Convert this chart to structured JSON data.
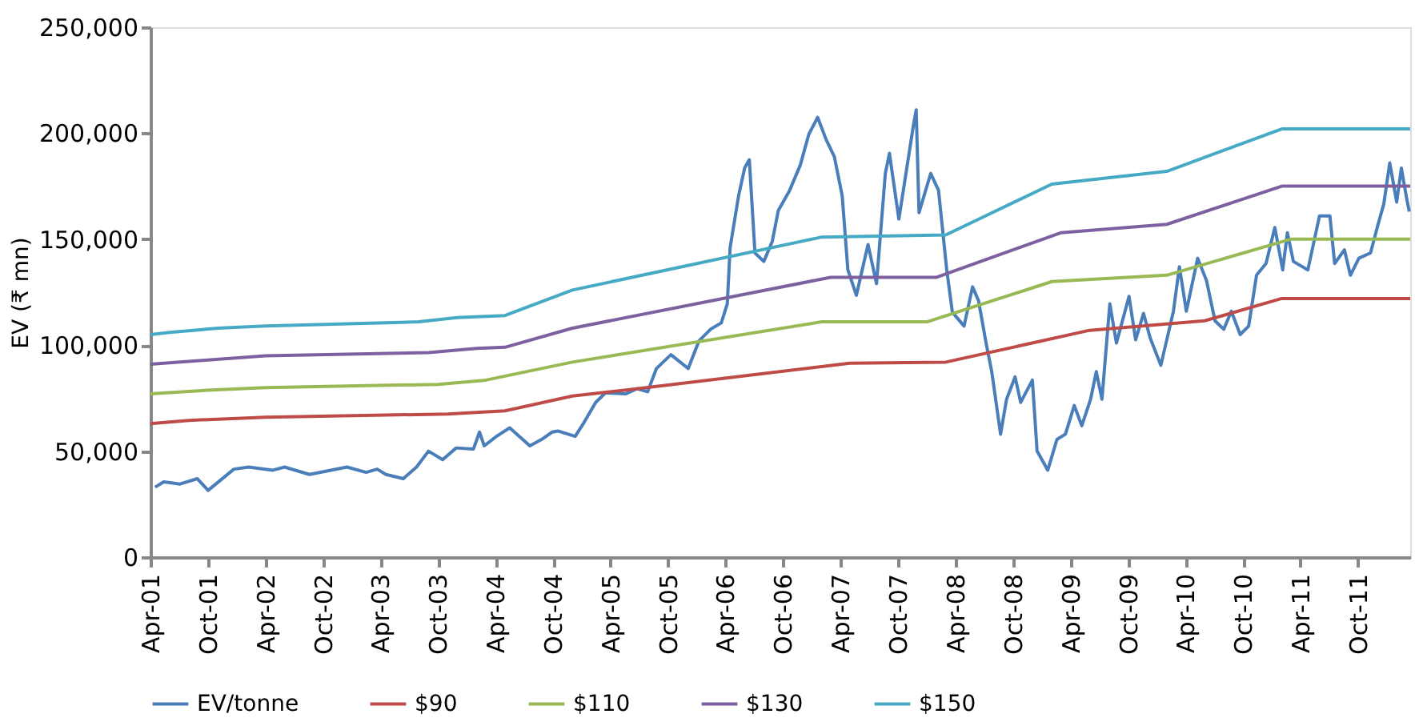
{
  "chart_data": {
    "type": "line",
    "ylabel": "EV (₹ mn)",
    "xlim": [
      "2001-04-01",
      "2012-03-15"
    ],
    "ylim": [
      0,
      250000
    ],
    "yticks": [
      {
        "value": 0,
        "label": "0"
      },
      {
        "value": 50000,
        "label": "50,000"
      },
      {
        "value": 100000,
        "label": "100,000"
      },
      {
        "value": 150000,
        "label": "150,000"
      },
      {
        "value": 200000,
        "label": "200,000"
      },
      {
        "value": 250000,
        "label": "250,000"
      }
    ],
    "xticks": [
      {
        "value": "2001-04-01",
        "label": "Apr-01"
      },
      {
        "value": "2001-10-01",
        "label": "Oct-01"
      },
      {
        "value": "2002-04-01",
        "label": "Apr-02"
      },
      {
        "value": "2002-10-01",
        "label": "Oct-02"
      },
      {
        "value": "2003-04-01",
        "label": "Apr-03"
      },
      {
        "value": "2003-10-01",
        "label": "Oct-03"
      },
      {
        "value": "2004-04-01",
        "label": "Apr-04"
      },
      {
        "value": "2004-10-01",
        "label": "Oct-04"
      },
      {
        "value": "2005-04-01",
        "label": "Apr-05"
      },
      {
        "value": "2005-10-01",
        "label": "Oct-05"
      },
      {
        "value": "2006-04-01",
        "label": "Apr-06"
      },
      {
        "value": "2006-10-01",
        "label": "Oct-06"
      },
      {
        "value": "2007-04-01",
        "label": "Apr-07"
      },
      {
        "value": "2007-10-01",
        "label": "Oct-07"
      },
      {
        "value": "2008-04-01",
        "label": "Apr-08"
      },
      {
        "value": "2008-10-01",
        "label": "Oct-08"
      },
      {
        "value": "2009-04-01",
        "label": "Apr-09"
      },
      {
        "value": "2009-10-01",
        "label": "Oct-09"
      },
      {
        "value": "2010-04-01",
        "label": "Apr-10"
      },
      {
        "value": "2010-10-01",
        "label": "Oct-10"
      },
      {
        "value": "2011-04-01",
        "label": "Apr-11"
      },
      {
        "value": "2011-10-01",
        "label": "Oct-11"
      }
    ],
    "grid": false,
    "legend": "bottom",
    "marker": "none",
    "line_style": "solid",
    "series": [
      {
        "name": "EV/tonne",
        "color": "#4a7ebb",
        "x": [
          "2001-04-16",
          "2001-05-13",
          "2001-07-04",
          "2001-08-28",
          "2001-10-01",
          "2001-12-22",
          "2002-02-07",
          "2002-04-25",
          "2002-06-01",
          "2002-08-19",
          "2002-12-16",
          "2003-02-15",
          "2003-03-22",
          "2003-04-19",
          "2003-06-13",
          "2003-07-25",
          "2003-09-01",
          "2003-10-16",
          "2003-11-28",
          "2004-01-22",
          "2004-02-10",
          "2004-02-25",
          "2004-04-04",
          "2004-05-16",
          "2004-07-19",
          "2004-08-25",
          "2004-09-28",
          "2004-10-16",
          "2004-12-10",
          "2005-01-07",
          "2005-02-13",
          "2005-03-16",
          "2005-05-19",
          "2005-06-25",
          "2005-07-28",
          "2005-08-25",
          "2005-10-10",
          "2005-12-04",
          "2006-01-07",
          "2006-02-13",
          "2006-03-19",
          "2006-04-07",
          "2006-04-16",
          "2006-05-13",
          "2006-06-01",
          "2006-06-16",
          "2006-07-04",
          "2006-08-01",
          "2006-08-28",
          "2006-09-16",
          "2006-10-22",
          "2006-11-25",
          "2006-12-22",
          "2007-01-19",
          "2007-02-15",
          "2007-03-13",
          "2007-04-07",
          "2007-04-25",
          "2007-05-22",
          "2007-06-28",
          "2007-07-25",
          "2007-08-22",
          "2007-09-04",
          "2007-10-04",
          "2007-11-19",
          "2007-11-28",
          "2007-12-07",
          "2008-01-13",
          "2008-02-07",
          "2008-03-04",
          "2008-03-22",
          "2008-04-28",
          "2008-05-25",
          "2008-06-13",
          "2008-07-07",
          "2008-07-25",
          "2008-08-22",
          "2008-09-10",
          "2008-10-07",
          "2008-10-25",
          "2008-12-01",
          "2008-12-16",
          "2009-01-19",
          "2009-02-17",
          "2009-03-16",
          "2009-04-13",
          "2009-05-07",
          "2009-06-04",
          "2009-06-22",
          "2009-07-10",
          "2009-08-04",
          "2009-08-25",
          "2009-10-04",
          "2009-10-25",
          "2009-11-19",
          "2009-12-10",
          "2010-01-13",
          "2010-02-22",
          "2010-03-13",
          "2010-04-04",
          "2010-05-10",
          "2010-06-07",
          "2010-07-04",
          "2010-08-01",
          "2010-08-25",
          "2010-09-22",
          "2010-10-19",
          "2010-11-13",
          "2010-12-13",
          "2011-01-10",
          "2011-02-04",
          "2011-02-19",
          "2011-03-10",
          "2011-04-25",
          "2011-06-01",
          "2011-07-04",
          "2011-07-19",
          "2011-08-19",
          "2011-09-07",
          "2011-10-04",
          "2011-11-10",
          "2011-12-04",
          "2011-12-22",
          "2012-01-10",
          "2012-02-01",
          "2012-02-16",
          "2012-03-04",
          "2012-03-12"
        ],
        "values": [
          33000,
          35500,
          34500,
          37000,
          31500,
          41500,
          42500,
          41000,
          42500,
          39000,
          42500,
          40000,
          41500,
          39000,
          37000,
          42500,
          50000,
          46000,
          51500,
          51000,
          59000,
          52500,
          57000,
          61000,
          52500,
          55500,
          59000,
          59500,
          57000,
          63500,
          73000,
          77500,
          77000,
          79500,
          78000,
          89000,
          95500,
          89000,
          102000,
          107500,
          110500,
          119500,
          146000,
          170500,
          183500,
          187500,
          143500,
          139500,
          149000,
          163500,
          173000,
          185000,
          199500,
          207500,
          197000,
          189000,
          170500,
          135500,
          123500,
          147500,
          129000,
          181000,
          190500,
          159500,
          203500,
          211000,
          162500,
          181000,
          173000,
          135500,
          115500,
          109000,
          127500,
          121000,
          101000,
          87500,
          58000,
          74500,
          85000,
          73000,
          83500,
          50000,
          41000,
          55500,
          58000,
          71500,
          62000,
          74500,
          87500,
          74500,
          119500,
          101000,
          123000,
          102500,
          115000,
          103500,
          90500,
          116000,
          137000,
          116000,
          141000,
          130500,
          111500,
          107500,
          116000,
          105000,
          109000,
          133000,
          138500,
          155500,
          135500,
          153000,
          139500,
          135500,
          161000,
          161000,
          138500,
          145000,
          133000,
          141000,
          143500,
          157000,
          166500,
          186000,
          167500,
          183500,
          169000,
          163000
        ]
      },
      {
        "name": "$90",
        "color": "#be4b48",
        "x": [
          "2001-04-01",
          "2001-08-01",
          "2002-04-01",
          "2003-11-01",
          "2004-05-01",
          "2004-12-01",
          "2005-06-01",
          "2007-05-01",
          "2008-03-01",
          "2009-06-01",
          "2010-06-01",
          "2011-02-01",
          "2012-03-15"
        ],
        "values": [
          63000,
          64500,
          66000,
          67500,
          69000,
          76000,
          79000,
          91500,
          92000,
          107000,
          111500,
          122000,
          122000
        ]
      },
      {
        "name": "$110",
        "color": "#98b954",
        "x": [
          "2001-04-01",
          "2001-09-01",
          "2002-04-01",
          "2003-10-01",
          "2004-03-01",
          "2004-12-01",
          "2007-02-01",
          "2008-01-01",
          "2009-02-01",
          "2010-02-01",
          "2011-03-01",
          "2012-03-15"
        ],
        "values": [
          77000,
          78500,
          80000,
          81500,
          83500,
          92000,
          111000,
          111000,
          130000,
          133000,
          150000,
          150000
        ]
      },
      {
        "name": "$130",
        "color": "#7d60a0",
        "x": [
          "2001-04-01",
          "2001-10-01",
          "2002-04-01",
          "2003-09-01",
          "2004-02-01",
          "2004-05-01",
          "2004-12-01",
          "2007-03-01",
          "2008-02-01",
          "2009-03-01",
          "2010-02-01",
          "2011-02-01",
          "2012-03-15"
        ],
        "values": [
          91000,
          93000,
          95000,
          96500,
          98500,
          99000,
          108000,
          132000,
          132000,
          153000,
          157000,
          175000,
          175000
        ]
      },
      {
        "name": "$150",
        "color": "#46aac5",
        "x": [
          "2001-04-01",
          "2001-06-01",
          "2001-11-01",
          "2002-04-01",
          "2003-08-01",
          "2003-12-01",
          "2004-05-01",
          "2004-12-01",
          "2007-02-01",
          "2008-03-01",
          "2009-02-01",
          "2010-02-01",
          "2011-02-01",
          "2012-03-15"
        ],
        "values": [
          105000,
          106000,
          108000,
          109000,
          111000,
          113000,
          114000,
          126000,
          151000,
          152000,
          176000,
          182000,
          202000,
          202000
        ]
      }
    ]
  }
}
